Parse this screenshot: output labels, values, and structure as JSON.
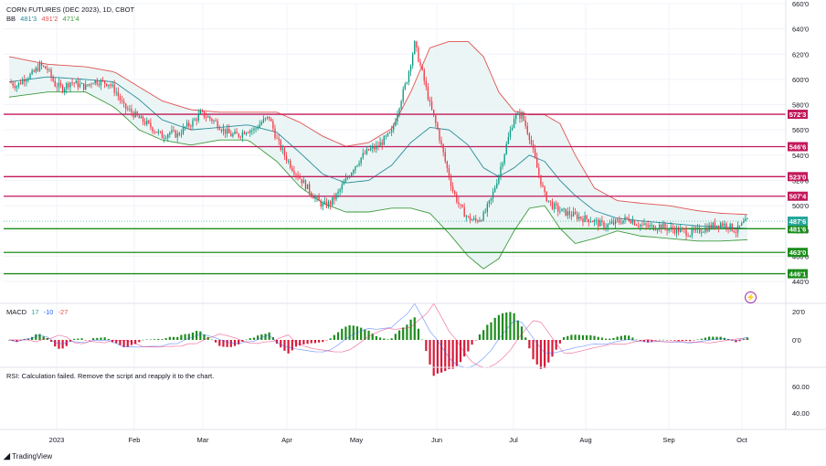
{
  "header": {
    "symbol": "CORN FUTURES (DEC 2023), 1D, CBOT",
    "bb_label": "BB",
    "bb_values": [
      "481'3",
      "491'2",
      "471'4"
    ],
    "macd_label": "MACD",
    "macd_values": [
      "17",
      "-10",
      "-27"
    ],
    "rsi_message": "RSI: Calculation failed. Remove the script and reapply it to the chart."
  },
  "brand": "TradingView",
  "colors": {
    "up": "#26a69a",
    "down": "#ef5350",
    "candle_up": "#089981",
    "candle_down": "#f23645",
    "resistance": "#c2185b",
    "support": "#1b8c1b",
    "bb_upper": "#e05252",
    "bb_basis": "#2a8c9c",
    "bb_lower": "#3d9a3d",
    "bb_fill": "#e6f3f3"
  },
  "chart_data": {
    "type": "candlestick",
    "title": "CORN FUTURES (DEC 2023), 1D, CBOT",
    "price_axis": {
      "ticks": [
        "660'0",
        "640'0",
        "620'0",
        "600'0",
        "580'0",
        "560'0",
        "540'0",
        "520'0",
        "500'0",
        "480'0",
        "460'0",
        "440'0"
      ],
      "min": 440,
      "max": 660
    },
    "macd_axis": {
      "ticks": [
        "20'0",
        "0'0"
      ]
    },
    "rsi_axis": {
      "ticks": [
        "60.00",
        "40.00"
      ]
    },
    "time_axis": {
      "labels": [
        "2023",
        "Feb",
        "Mar",
        "Apr",
        "May",
        "Jun",
        "Jul",
        "Aug",
        "Sep",
        "Oct"
      ]
    },
    "levels": [
      {
        "label": "572'3",
        "price": 572.4,
        "kind": "resistance"
      },
      {
        "label": "546'6",
        "price": 546.75,
        "kind": "resistance"
      },
      {
        "label": "523'0",
        "price": 523.0,
        "kind": "resistance"
      },
      {
        "label": "507'4",
        "price": 507.5,
        "kind": "resistance"
      },
      {
        "label": "481'6",
        "price": 481.75,
        "kind": "support"
      },
      {
        "label": "463'0",
        "price": 463.0,
        "kind": "support"
      },
      {
        "label": "446'1",
        "price": 446.1,
        "kind": "support"
      }
    ],
    "last_price": {
      "label": "487'6",
      "price": 487.75
    },
    "close_path": [
      [
        0,
        598
      ],
      [
        4,
        595
      ],
      [
        8,
        601
      ],
      [
        12,
        604
      ],
      [
        16,
        611
      ],
      [
        20,
        608
      ],
      [
        24,
        596
      ],
      [
        28,
        593
      ],
      [
        32,
        598
      ],
      [
        36,
        596
      ],
      [
        40,
        594
      ],
      [
        44,
        599
      ],
      [
        48,
        598
      ],
      [
        52,
        597
      ],
      [
        56,
        590
      ],
      [
        60,
        578
      ],
      [
        64,
        574
      ],
      [
        68,
        569
      ],
      [
        72,
        565
      ],
      [
        76,
        560
      ],
      [
        80,
        555
      ],
      [
        84,
        558
      ],
      [
        88,
        556
      ],
      [
        92,
        562
      ],
      [
        96,
        566
      ],
      [
        100,
        573
      ],
      [
        104,
        570
      ],
      [
        108,
        566
      ],
      [
        112,
        560
      ],
      [
        116,
        556
      ],
      [
        120,
        556
      ],
      [
        124,
        560
      ],
      [
        128,
        560
      ],
      [
        132,
        566
      ],
      [
        136,
        570
      ],
      [
        140,
        552
      ],
      [
        144,
        540
      ],
      [
        148,
        530
      ],
      [
        152,
        522
      ],
      [
        156,
        514
      ],
      [
        160,
        506
      ],
      [
        164,
        500
      ],
      [
        168,
        502
      ],
      [
        172,
        510
      ],
      [
        176,
        520
      ],
      [
        180,
        530
      ],
      [
        184,
        538
      ],
      [
        188,
        544
      ],
      [
        192,
        546
      ],
      [
        196,
        552
      ],
      [
        200,
        558
      ],
      [
        204,
        580
      ],
      [
        208,
        600
      ],
      [
        212,
        628
      ],
      [
        216,
        605
      ],
      [
        220,
        580
      ],
      [
        224,
        560
      ],
      [
        228,
        535
      ],
      [
        232,
        512
      ],
      [
        236,
        498
      ],
      [
        240,
        490
      ],
      [
        244,
        488
      ],
      [
        248,
        492
      ],
      [
        252,
        505
      ],
      [
        256,
        525
      ],
      [
        260,
        548
      ],
      [
        264,
        570
      ],
      [
        268,
        572
      ],
      [
        272,
        555
      ],
      [
        276,
        530
      ],
      [
        280,
        508
      ],
      [
        284,
        500
      ],
      [
        288,
        496
      ],
      [
        292,
        494
      ],
      [
        296,
        492
      ],
      [
        300,
        490
      ],
      [
        304,
        489
      ],
      [
        308,
        486
      ],
      [
        312,
        484
      ],
      [
        316,
        486
      ],
      [
        320,
        488
      ],
      [
        324,
        490
      ],
      [
        328,
        486
      ],
      [
        332,
        484
      ],
      [
        336,
        483
      ],
      [
        340,
        484
      ],
      [
        344,
        482
      ],
      [
        348,
        481
      ],
      [
        352,
        480
      ],
      [
        356,
        478
      ],
      [
        360,
        480
      ],
      [
        364,
        482
      ],
      [
        368,
        484
      ],
      [
        372,
        486
      ],
      [
        376,
        484
      ],
      [
        380,
        480
      ],
      [
        384,
        486
      ],
      [
        386,
        487.75
      ]
    ],
    "bollinger": {
      "upper_path": [
        [
          0,
          618
        ],
        [
          20,
          612
        ],
        [
          40,
          610
        ],
        [
          55,
          606
        ],
        [
          68,
          594
        ],
        [
          80,
          583
        ],
        [
          95,
          576
        ],
        [
          110,
          574
        ],
        [
          125,
          574
        ],
        [
          140,
          574
        ],
        [
          152,
          566
        ],
        [
          164,
          555
        ],
        [
          176,
          547
        ],
        [
          188,
          550
        ],
        [
          200,
          561
        ],
        [
          210,
          590
        ],
        [
          220,
          625
        ],
        [
          230,
          630
        ],
        [
          240,
          630
        ],
        [
          248,
          618
        ],
        [
          256,
          590
        ],
        [
          264,
          575
        ],
        [
          272,
          572
        ],
        [
          280,
          572
        ],
        [
          288,
          565
        ],
        [
          296,
          540
        ],
        [
          306,
          514
        ],
        [
          318,
          504
        ],
        [
          330,
          502
        ],
        [
          345,
          500
        ],
        [
          360,
          496
        ],
        [
          372,
          494
        ],
        [
          386,
          493
        ]
      ],
      "basis_path": [
        [
          0,
          598
        ],
        [
          20,
          602
        ],
        [
          40,
          600
        ],
        [
          55,
          598
        ],
        [
          68,
          584
        ],
        [
          80,
          568
        ],
        [
          95,
          560
        ],
        [
          110,
          562
        ],
        [
          125,
          564
        ],
        [
          140,
          558
        ],
        [
          152,
          542
        ],
        [
          164,
          525
        ],
        [
          176,
          518
        ],
        [
          188,
          520
        ],
        [
          200,
          532
        ],
        [
          210,
          550
        ],
        [
          220,
          562
        ],
        [
          230,
          560
        ],
        [
          240,
          548
        ],
        [
          248,
          530
        ],
        [
          256,
          523
        ],
        [
          264,
          530
        ],
        [
          272,
          540
        ],
        [
          280,
          535
        ],
        [
          288,
          520
        ],
        [
          296,
          508
        ],
        [
          306,
          496
        ],
        [
          318,
          490
        ],
        [
          330,
          488
        ],
        [
          345,
          486
        ],
        [
          360,
          484
        ],
        [
          372,
          483
        ],
        [
          386,
          482
        ]
      ],
      "lower_path": [
        [
          0,
          586
        ],
        [
          20,
          590
        ],
        [
          40,
          590
        ],
        [
          55,
          578
        ],
        [
          68,
          560
        ],
        [
          80,
          552
        ],
        [
          95,
          548
        ],
        [
          110,
          552
        ],
        [
          125,
          552
        ],
        [
          140,
          535
        ],
        [
          152,
          515
        ],
        [
          164,
          502
        ],
        [
          176,
          495
        ],
        [
          188,
          495
        ],
        [
          200,
          498
        ],
        [
          210,
          498
        ],
        [
          220,
          494
        ],
        [
          230,
          478
        ],
        [
          240,
          460
        ],
        [
          248,
          450
        ],
        [
          256,
          458
        ],
        [
          264,
          480
        ],
        [
          272,
          498
        ],
        [
          280,
          500
        ],
        [
          288,
          482
        ],
        [
          296,
          470
        ],
        [
          306,
          474
        ],
        [
          318,
          480
        ],
        [
          330,
          476
        ],
        [
          345,
          474
        ],
        [
          360,
          472
        ],
        [
          372,
          472
        ],
        [
          386,
          473
        ]
      ]
    }
  }
}
